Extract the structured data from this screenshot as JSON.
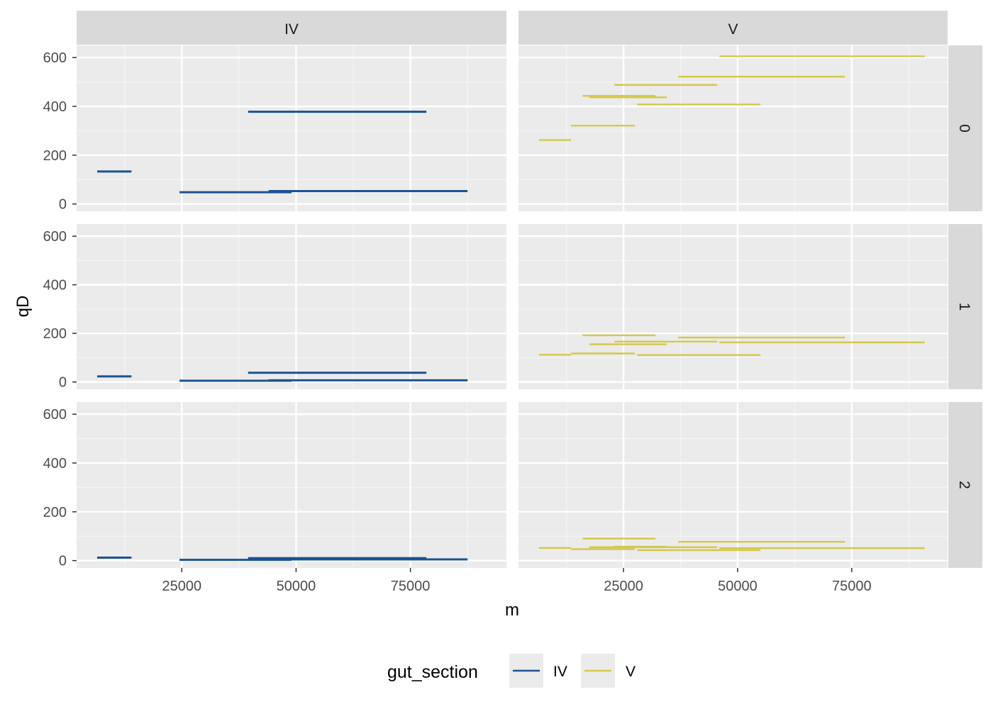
{
  "chart_data": {
    "type": "line",
    "mark": "horizontal segments (faceted: columns = gut_section, rows = order q)",
    "xlabel": "m",
    "ylabel": "qD",
    "xlim": [
      2000,
      96000
    ],
    "ylim": [
      -30,
      650
    ],
    "x_ticks": [
      25000,
      50000,
      75000
    ],
    "x_tick_labels": [
      "25000",
      "50000",
      "75000"
    ],
    "y_ticks": [
      0,
      200,
      400,
      600
    ],
    "y_tick_labels": [
      "0",
      "200",
      "400",
      "600"
    ],
    "grid": true,
    "legend_position": "bottom",
    "legend": {
      "title": "gut_section",
      "entries": [
        {
          "label": "IV",
          "color": "#1a5393"
        },
        {
          "label": "V",
          "color": "#d4c84a"
        }
      ]
    },
    "facet_columns": [
      {
        "label": "IV",
        "color": "#1a5393"
      },
      {
        "label": "V",
        "color": "#d4c84a"
      }
    ],
    "facet_rows": [
      "0",
      "1",
      "2"
    ],
    "series": [
      {
        "column": "IV",
        "row": "0",
        "segments": [
          {
            "x1": 6500,
            "x2": 14000,
            "y": 133
          },
          {
            "x1": 24500,
            "x2": 49000,
            "y": 48
          },
          {
            "x1": 44000,
            "x2": 87500,
            "y": 53
          },
          {
            "x1": 39500,
            "x2": 78500,
            "y": 378
          }
        ]
      },
      {
        "column": "V",
        "row": "0",
        "segments": [
          {
            "x1": 46000,
            "x2": 91000,
            "y": 605
          },
          {
            "x1": 37000,
            "x2": 73500,
            "y": 522
          },
          {
            "x1": 23000,
            "x2": 45500,
            "y": 488
          },
          {
            "x1": 16000,
            "x2": 32000,
            "y": 443
          },
          {
            "x1": 17500,
            "x2": 34500,
            "y": 437
          },
          {
            "x1": 28000,
            "x2": 55000,
            "y": 408
          },
          {
            "x1": 13500,
            "x2": 27500,
            "y": 321
          },
          {
            "x1": 6500,
            "x2": 13500,
            "y": 262
          }
        ]
      },
      {
        "column": "IV",
        "row": "1",
        "segments": [
          {
            "x1": 6500,
            "x2": 14000,
            "y": 23
          },
          {
            "x1": 39500,
            "x2": 78500,
            "y": 38
          },
          {
            "x1": 24500,
            "x2": 49000,
            "y": 5
          },
          {
            "x1": 44000,
            "x2": 87500,
            "y": 7
          }
        ]
      },
      {
        "column": "V",
        "row": "1",
        "segments": [
          {
            "x1": 16000,
            "x2": 32000,
            "y": 192
          },
          {
            "x1": 37000,
            "x2": 73500,
            "y": 183
          },
          {
            "x1": 23000,
            "x2": 45500,
            "y": 166
          },
          {
            "x1": 46000,
            "x2": 91000,
            "y": 163
          },
          {
            "x1": 17500,
            "x2": 34500,
            "y": 155
          },
          {
            "x1": 13500,
            "x2": 27500,
            "y": 117
          },
          {
            "x1": 6500,
            "x2": 13500,
            "y": 112
          },
          {
            "x1": 28000,
            "x2": 55000,
            "y": 111
          }
        ]
      },
      {
        "column": "IV",
        "row": "2",
        "segments": [
          {
            "x1": 6500,
            "x2": 14000,
            "y": 12
          },
          {
            "x1": 39500,
            "x2": 78500,
            "y": 10
          },
          {
            "x1": 24500,
            "x2": 49000,
            "y": 3
          },
          {
            "x1": 44000,
            "x2": 87500,
            "y": 5
          }
        ]
      },
      {
        "column": "V",
        "row": "2",
        "segments": [
          {
            "x1": 16000,
            "x2": 32000,
            "y": 90
          },
          {
            "x1": 37000,
            "x2": 73500,
            "y": 77
          },
          {
            "x1": 23000,
            "x2": 34500,
            "y": 57
          },
          {
            "x1": 17500,
            "x2": 45500,
            "y": 55
          },
          {
            "x1": 6500,
            "x2": 13500,
            "y": 52
          },
          {
            "x1": 46000,
            "x2": 91000,
            "y": 51
          },
          {
            "x1": 13500,
            "x2": 27500,
            "y": 47
          },
          {
            "x1": 28000,
            "x2": 55000,
            "y": 43
          }
        ]
      }
    ]
  }
}
